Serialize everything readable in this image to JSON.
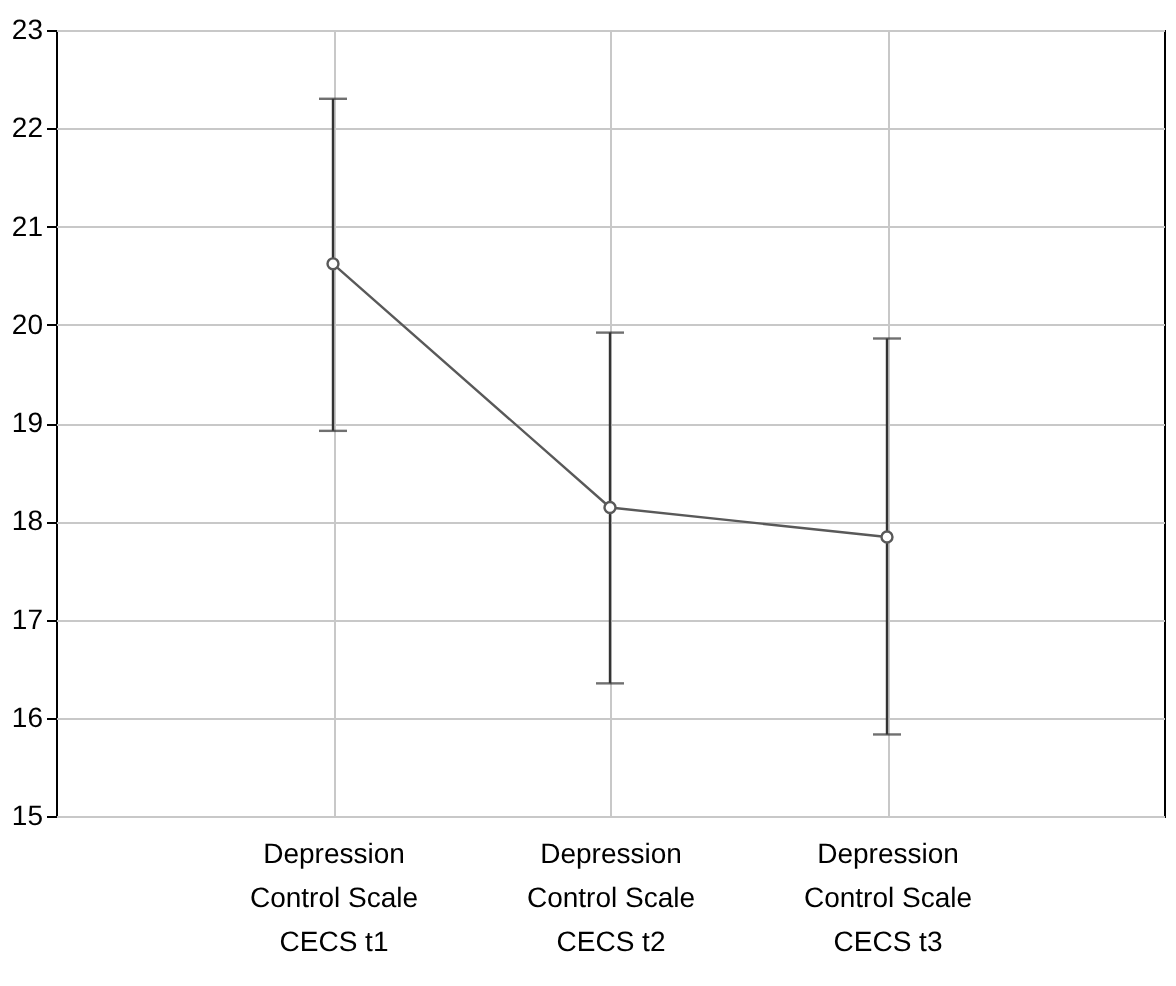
{
  "chart_data": {
    "type": "line",
    "categories": [
      "Depression\nControl Scale\nCECS t1",
      "Depression\nControl Scale\nCECS t2",
      "Depression\nControl Scale\nCECS t3"
    ],
    "series": [
      {
        "color": "#595959",
        "values": [
          20.62,
          18.14,
          17.84
        ],
        "errors": [
          [
            18.92,
            22.3
          ],
          [
            16.35,
            19.92
          ],
          [
            15.83,
            19.86
          ]
        ]
      }
    ],
    "ylim": [
      15,
      23
    ],
    "yticks": [
      15,
      16,
      17,
      18,
      19,
      20,
      21,
      22,
      23
    ],
    "grid": true,
    "marker": "circle",
    "line_style": "solid"
  }
}
